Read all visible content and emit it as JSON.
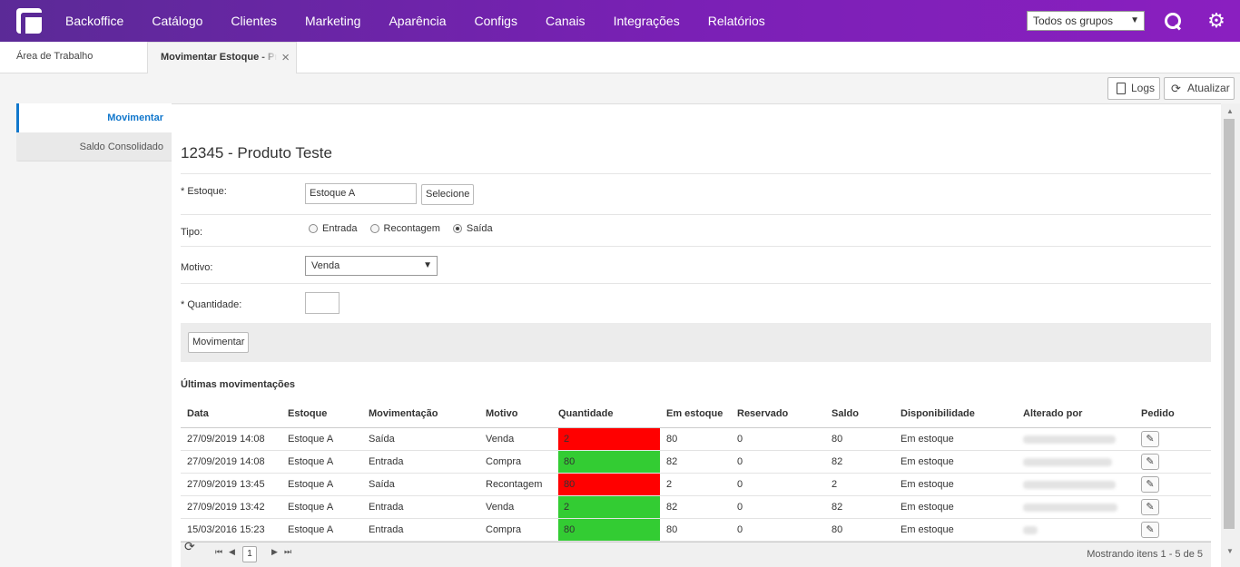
{
  "nav": {
    "items": [
      "Backoffice",
      "Catálogo",
      "Clientes",
      "Marketing",
      "Aparência",
      "Configs",
      "Canais",
      "Integrações",
      "Relatórios"
    ],
    "group_select": "Todos os grupos",
    "icons": [
      "search-icon",
      "gear-icon"
    ]
  },
  "tabs": {
    "workspace": "Área de Trabalho",
    "active": "Movimentar Estoque - Produto Teste",
    "close": "×"
  },
  "toolbar": {
    "logs": "Logs",
    "refresh": "Atualizar"
  },
  "sidebar": {
    "items": [
      "Movimentar",
      "Saldo Consolidado"
    ]
  },
  "form": {
    "title": "12345 - Produto Teste",
    "stock_label": "* Estoque:",
    "stock_value": "Estoque A",
    "select_button": "Selecione",
    "type_label": "Tipo:",
    "type_options": [
      "Entrada",
      "Recontagem",
      "Saída"
    ],
    "type_selected": "Saída",
    "reason_label": "Motivo:",
    "reason_value": "Venda",
    "qty_label": "* Quantidade:",
    "qty_value": "",
    "submit": "Movimentar"
  },
  "movements": {
    "title": "Últimas movimentações",
    "columns": [
      "Data",
      "Estoque",
      "Movimentação",
      "Motivo",
      "Quantidade",
      "Em estoque",
      "Reservado",
      "Saldo",
      "Disponibilidade",
      "Alterado por",
      "Pedido"
    ],
    "rows": [
      {
        "date": "27/09/2019 14:08",
        "stock": "Estoque A",
        "movement": "Saída",
        "reason": "Venda",
        "qty": "2",
        "qty_color": "#ff0000",
        "in_stock": "80",
        "reserved": "0",
        "balance": "80",
        "availability": "Em estoque"
      },
      {
        "date": "27/09/2019 14:08",
        "stock": "Estoque A",
        "movement": "Entrada",
        "reason": "Compra",
        "qty": "80",
        "qty_color": "#33cc33",
        "in_stock": "82",
        "reserved": "0",
        "balance": "82",
        "availability": "Em estoque"
      },
      {
        "date": "27/09/2019 13:45",
        "stock": "Estoque A",
        "movement": "Saída",
        "reason": "Recontagem",
        "qty": "80",
        "qty_color": "#ff0000",
        "in_stock": "2",
        "reserved": "0",
        "balance": "2",
        "availability": "Em estoque"
      },
      {
        "date": "27/09/2019 13:42",
        "stock": "Estoque A",
        "movement": "Entrada",
        "reason": "Venda",
        "qty": "2",
        "qty_color": "#33cc33",
        "in_stock": "82",
        "reserved": "0",
        "balance": "82",
        "availability": "Em estoque"
      },
      {
        "date": "15/03/2016 15:23",
        "stock": "Estoque A",
        "movement": "Entrada",
        "reason": "Compra",
        "qty": "80",
        "qty_color": "#33cc33",
        "in_stock": "80",
        "reserved": "0",
        "balance": "80",
        "availability": "Em estoque"
      }
    ],
    "pager": {
      "current_page": "1",
      "info": "Mostrando itens 1 - 5 de 5"
    }
  },
  "colors": {
    "topbar_start": "#5b2a97",
    "topbar_end": "#8a1fc0",
    "accent": "#1177cc",
    "qty_out": "#ff0000",
    "qty_in": "#33cc33"
  }
}
